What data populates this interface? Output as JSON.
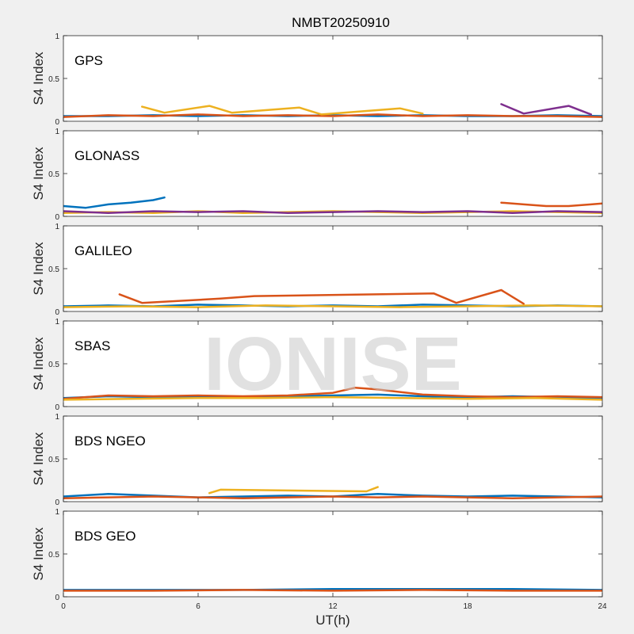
{
  "chart_data": {
    "type": "line",
    "title": "NMBT20250910",
    "xlabel": "UT(h)",
    "ylabel": "S4 Index",
    "xlim": [
      0,
      24
    ],
    "ylim": [
      0,
      1
    ],
    "x_ticks": [
      "0",
      "6",
      "12",
      "18",
      "24"
    ],
    "y_ticks": [
      "0",
      "0.5",
      "1"
    ],
    "watermark": "IONISE",
    "grid": false,
    "series_colors": [
      "#0072bd",
      "#d95319",
      "#edb120",
      "#7e2f8e",
      "#77ac30",
      "#4dbeee",
      "#a2142f"
    ],
    "panels": [
      {
        "name": "GPS",
        "series": [
          {
            "x": [
              0,
              2,
              4,
              6,
              8,
              10,
              12,
              14,
              16,
              18,
              20,
              22,
              24
            ],
            "y": [
              0.06,
              0.06,
              0.07,
              0.06,
              0.07,
              0.06,
              0.07,
              0.06,
              0.07,
              0.06,
              0.06,
              0.07,
              0.06
            ]
          },
          {
            "x": [
              0,
              2,
              4,
              6,
              8,
              10,
              12,
              14,
              16,
              18,
              20,
              22,
              24
            ],
            "y": [
              0.05,
              0.07,
              0.06,
              0.08,
              0.06,
              0.07,
              0.06,
              0.08,
              0.06,
              0.07,
              0.06,
              0.06,
              0.05
            ]
          },
          {
            "x": [
              3.5,
              4.5,
              6.5,
              7.5,
              10.5,
              11.5,
              15,
              16
            ],
            "y": [
              0.17,
              0.1,
              0.18,
              0.1,
              0.16,
              0.08,
              0.15,
              0.09
            ]
          },
          {
            "x": [
              19.5,
              20.5,
              22.5,
              23.5
            ],
            "y": [
              0.2,
              0.09,
              0.18,
              0.08
            ]
          }
        ]
      },
      {
        "name": "GLONASS",
        "series": [
          {
            "x": [
              0,
              1,
              2,
              3,
              4,
              4.5
            ],
            "y": [
              0.12,
              0.1,
              0.14,
              0.16,
              0.19,
              0.22
            ]
          },
          {
            "x": [
              19.5,
              20.5,
              21.5,
              22.5,
              23.5,
              24
            ],
            "y": [
              0.16,
              0.14,
              0.12,
              0.12,
              0.14,
              0.15
            ]
          },
          {
            "x": [
              0,
              2,
              4,
              6,
              8,
              10,
              12,
              14,
              16,
              18,
              20,
              22,
              24
            ],
            "y": [
              0.04,
              0.05,
              0.04,
              0.06,
              0.04,
              0.05,
              0.06,
              0.05,
              0.04,
              0.05,
              0.06,
              0.05,
              0.04
            ]
          },
          {
            "x": [
              0,
              2,
              4,
              6,
              8,
              10,
              12,
              14,
              16,
              18,
              20,
              22,
              24
            ],
            "y": [
              0.06,
              0.04,
              0.06,
              0.05,
              0.06,
              0.04,
              0.05,
              0.06,
              0.05,
              0.06,
              0.04,
              0.06,
              0.05
            ]
          }
        ]
      },
      {
        "name": "GALILEO",
        "series": [
          {
            "x": [
              0,
              2,
              4,
              6,
              8,
              10,
              12,
              14,
              16,
              18,
              20,
              22,
              24
            ],
            "y": [
              0.06,
              0.07,
              0.06,
              0.08,
              0.07,
              0.06,
              0.07,
              0.06,
              0.08,
              0.07,
              0.06,
              0.07,
              0.06
            ]
          },
          {
            "x": [
              2.5,
              3.5,
              7,
              8.5,
              16.5,
              17.5,
              19.5,
              20.5
            ],
            "y": [
              0.2,
              0.1,
              0.15,
              0.18,
              0.21,
              0.1,
              0.25,
              0.09
            ]
          },
          {
            "x": [
              0,
              3,
              6,
              9,
              12,
              15,
              18,
              21,
              24
            ],
            "y": [
              0.05,
              0.06,
              0.05,
              0.07,
              0.06,
              0.05,
              0.06,
              0.07,
              0.06
            ]
          }
        ]
      },
      {
        "name": "SBAS",
        "series": [
          {
            "x": [
              0,
              2,
              4,
              6,
              8,
              10,
              12,
              14,
              16,
              18,
              20,
              22,
              24
            ],
            "y": [
              0.1,
              0.12,
              0.11,
              0.12,
              0.11,
              0.12,
              0.13,
              0.14,
              0.12,
              0.11,
              0.12,
              0.11,
              0.1
            ]
          },
          {
            "x": [
              0,
              2,
              4,
              6,
              8,
              10,
              12,
              13,
              14,
              16,
              18,
              20,
              22,
              24
            ],
            "y": [
              0.09,
              0.13,
              0.12,
              0.13,
              0.12,
              0.13,
              0.16,
              0.22,
              0.2,
              0.14,
              0.12,
              0.11,
              0.12,
              0.11
            ]
          },
          {
            "x": [
              0,
              3,
              6,
              9,
              12,
              15,
              18,
              21,
              24
            ],
            "y": [
              0.08,
              0.09,
              0.1,
              0.1,
              0.11,
              0.1,
              0.09,
              0.1,
              0.08
            ]
          }
        ]
      },
      {
        "name": "BDS NGEO",
        "series": [
          {
            "x": [
              0,
              2,
              4,
              6,
              8,
              10,
              12,
              14,
              16,
              18,
              20,
              22,
              24
            ],
            "y": [
              0.06,
              0.09,
              0.07,
              0.05,
              0.06,
              0.07,
              0.06,
              0.09,
              0.07,
              0.06,
              0.07,
              0.06,
              0.05
            ]
          },
          {
            "x": [
              0,
              2,
              4,
              6,
              8,
              10,
              12,
              14,
              16,
              18,
              20,
              22,
              24
            ],
            "y": [
              0.04,
              0.05,
              0.06,
              0.05,
              0.04,
              0.05,
              0.06,
              0.05,
              0.06,
              0.05,
              0.04,
              0.05,
              0.06
            ]
          },
          {
            "x": [
              6.5,
              7,
              13.5,
              14
            ],
            "y": [
              0.1,
              0.14,
              0.12,
              0.17
            ]
          }
        ]
      },
      {
        "name": "BDS GEO",
        "series": [
          {
            "x": [
              0,
              4,
              8,
              12,
              16,
              20,
              24
            ],
            "y": [
              0.08,
              0.08,
              0.08,
              0.09,
              0.09,
              0.09,
              0.08
            ]
          },
          {
            "x": [
              0,
              4,
              8,
              12,
              16,
              20,
              24
            ],
            "y": [
              0.07,
              0.07,
              0.08,
              0.07,
              0.08,
              0.07,
              0.07
            ]
          }
        ]
      }
    ]
  }
}
